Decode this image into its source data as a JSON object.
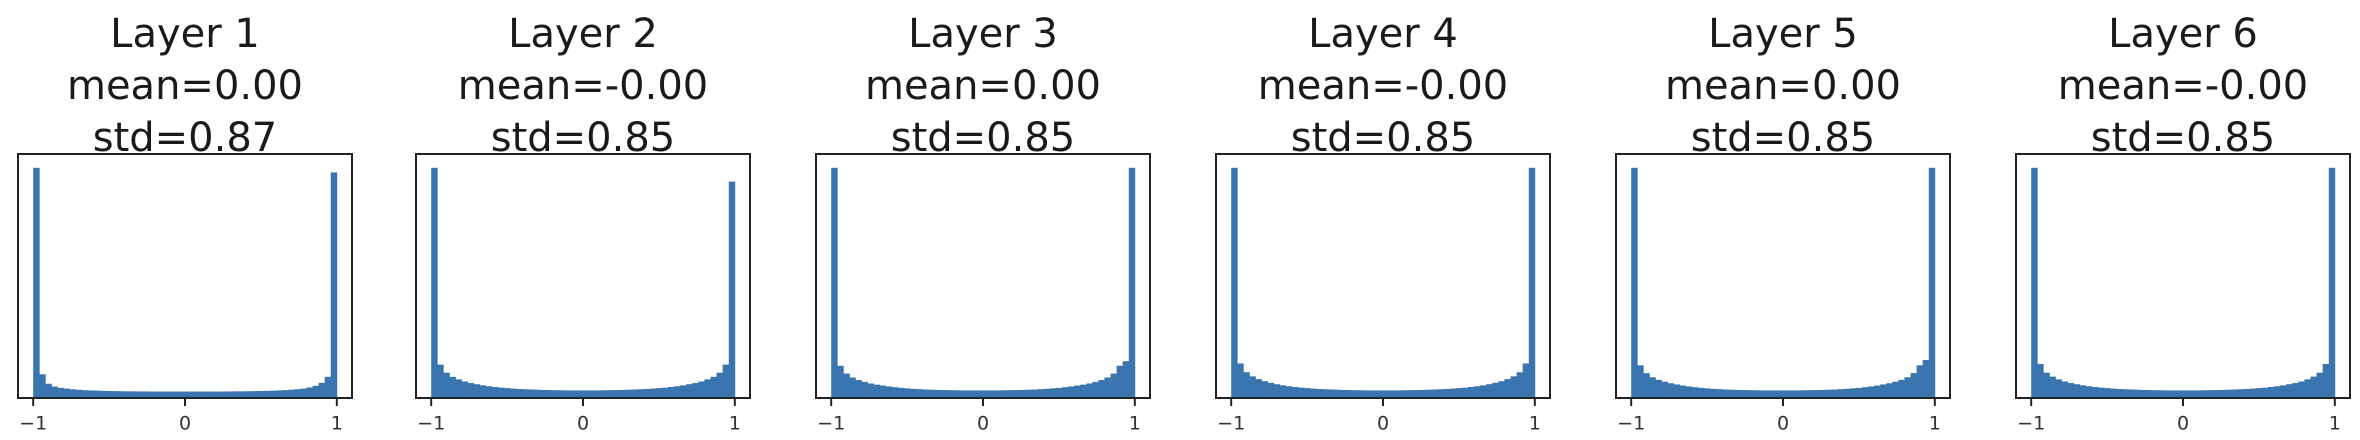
{
  "colors": {
    "bar": "#3b75af"
  },
  "chart_data": [
    {
      "type": "bar",
      "title": "Layer 1",
      "mean_label": "mean=0.00",
      "std_label": "std=0.87",
      "xticks": [
        "−1",
        "0",
        "1"
      ],
      "xlim": [
        -1.1,
        1.1
      ],
      "bin_range": [
        -1,
        1
      ],
      "values": [
        100,
        10.3,
        6.2,
        5.0,
        4.4,
        4.1,
        3.8,
        3.6,
        3.4,
        3.3,
        3.2,
        3.1,
        3.05,
        3.0,
        2.95,
        2.9,
        2.9,
        2.85,
        2.85,
        2.8,
        2.8,
        2.8,
        2.8,
        2.8,
        2.8,
        2.8,
        2.8,
        2.8,
        2.8,
        2.8,
        2.8,
        2.85,
        2.85,
        2.9,
        2.9,
        2.95,
        3.0,
        3.05,
        3.1,
        3.2,
        3.3,
        3.45,
        3.6,
        3.8,
        4.1,
        4.6,
        5.3,
        6.6,
        9.2,
        98
      ]
    },
    {
      "type": "bar",
      "title": "Layer 2",
      "mean_label": "mean=-0.00",
      "std_label": "std=0.85",
      "xticks": [
        "−1",
        "0",
        "1"
      ],
      "xlim": [
        -1.1,
        1.1
      ],
      "bin_range": [
        -1,
        1
      ],
      "values": [
        100,
        14.5,
        11.0,
        9.2,
        8.1,
        7.2,
        6.5,
        6.0,
        5.5,
        5.1,
        4.8,
        4.5,
        4.3,
        4.1,
        3.9,
        3.8,
        3.7,
        3.6,
        3.5,
        3.45,
        3.4,
        3.35,
        3.3,
        3.3,
        3.3,
        3.3,
        3.3,
        3.3,
        3.35,
        3.4,
        3.45,
        3.5,
        3.6,
        3.7,
        3.8,
        3.9,
        4.1,
        4.3,
        4.5,
        4.8,
        5.1,
        5.5,
        6.0,
        6.5,
        7.2,
        8.1,
        9.2,
        11.0,
        14.5,
        94
      ]
    },
    {
      "type": "bar",
      "title": "Layer 3",
      "mean_label": "mean=0.00",
      "std_label": "std=0.85",
      "xticks": [
        "−1",
        "0",
        "1"
      ],
      "xlim": [
        -1.1,
        1.1
      ],
      "bin_range": [
        -1,
        1
      ],
      "values": [
        100,
        14.0,
        10.6,
        8.9,
        7.8,
        7.0,
        6.3,
        5.8,
        5.4,
        5.0,
        4.7,
        4.4,
        4.2,
        4.0,
        3.85,
        3.7,
        3.6,
        3.5,
        3.45,
        3.4,
        3.35,
        3.3,
        3.3,
        3.3,
        3.3,
        3.3,
        3.3,
        3.3,
        3.35,
        3.4,
        3.45,
        3.5,
        3.6,
        3.7,
        3.85,
        4.0,
        4.2,
        4.4,
        4.7,
        5.0,
        5.4,
        5.8,
        6.3,
        7.0,
        7.8,
        8.9,
        10.6,
        14.0,
        16.0,
        100
      ]
    },
    {
      "type": "bar",
      "title": "Layer 4",
      "mean_label": "mean=-0.00",
      "std_label": "std=0.85",
      "xticks": [
        "−1",
        "0",
        "1"
      ],
      "xlim": [
        -1.1,
        1.1
      ],
      "bin_range": [
        -1,
        1
      ],
      "values": [
        100,
        15.0,
        11.2,
        9.4,
        8.2,
        7.3,
        6.6,
        6.0,
        5.5,
        5.1,
        4.8,
        4.5,
        4.3,
        4.1,
        3.9,
        3.8,
        3.7,
        3.6,
        3.5,
        3.45,
        3.4,
        3.35,
        3.3,
        3.3,
        3.3,
        3.3,
        3.3,
        3.3,
        3.35,
        3.4,
        3.45,
        3.5,
        3.6,
        3.7,
        3.8,
        3.9,
        4.1,
        4.3,
        4.5,
        4.8,
        5.1,
        5.5,
        6.0,
        6.6,
        7.3,
        8.2,
        9.4,
        11.2,
        15.0,
        100
      ]
    },
    {
      "type": "bar",
      "title": "Layer 5",
      "mean_label": "mean=0.00",
      "std_label": "std=0.85",
      "xticks": [
        "−1",
        "0",
        "1"
      ],
      "xlim": [
        -1.1,
        1.1
      ],
      "bin_range": [
        -1,
        1
      ],
      "values": [
        100,
        14.2,
        10.8,
        9.0,
        7.9,
        7.1,
        6.4,
        5.9,
        5.4,
        5.0,
        4.7,
        4.4,
        4.2,
        4.0,
        3.85,
        3.7,
        3.6,
        3.5,
        3.45,
        3.4,
        3.35,
        3.3,
        3.3,
        3.3,
        3.3,
        3.3,
        3.3,
        3.3,
        3.35,
        3.4,
        3.45,
        3.5,
        3.6,
        3.7,
        3.85,
        4.0,
        4.2,
        4.4,
        4.7,
        5.0,
        5.4,
        5.9,
        6.4,
        7.1,
        7.9,
        9.0,
        10.8,
        14.2,
        16.5,
        100
      ]
    },
    {
      "type": "bar",
      "title": "Layer 6",
      "mean_label": "mean=-0.00",
      "std_label": "std=0.85",
      "xticks": [
        "−1",
        "0",
        "1"
      ],
      "xlim": [
        -1.1,
        1.1
      ],
      "bin_range": [
        -1,
        1
      ],
      "values": [
        100,
        14.8,
        11.0,
        9.3,
        8.1,
        7.2,
        6.5,
        6.0,
        5.5,
        5.1,
        4.8,
        4.5,
        4.3,
        4.1,
        3.9,
        3.8,
        3.7,
        3.6,
        3.5,
        3.45,
        3.4,
        3.35,
        3.3,
        3.3,
        3.3,
        3.3,
        3.3,
        3.3,
        3.35,
        3.4,
        3.45,
        3.5,
        3.6,
        3.7,
        3.8,
        3.9,
        4.1,
        4.3,
        4.5,
        4.8,
        5.1,
        5.5,
        6.0,
        6.5,
        7.2,
        8.1,
        9.3,
        11.0,
        14.8,
        100
      ]
    }
  ]
}
